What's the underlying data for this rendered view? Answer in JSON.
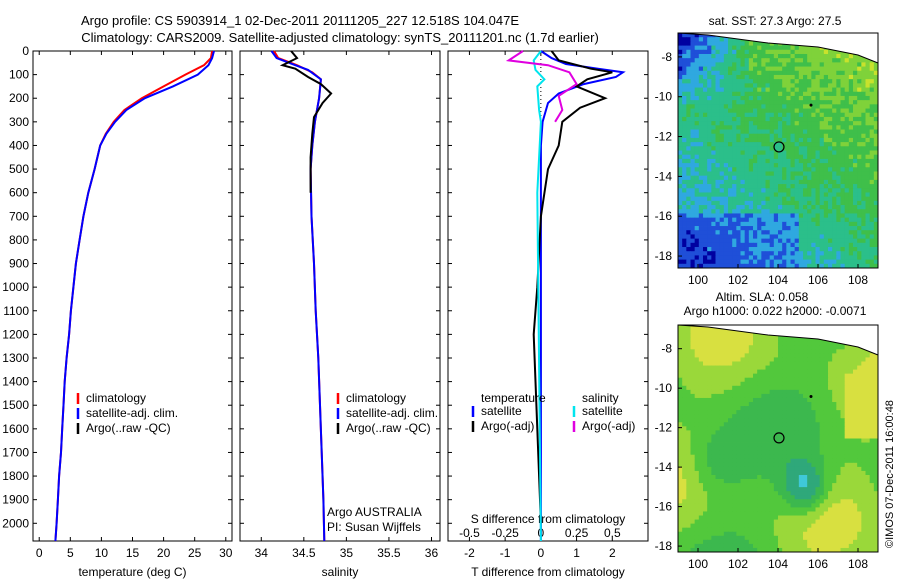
{
  "header": {
    "line1": "Argo profile: CS 5903914_1 02-Dec-2011 20111205_227 12.518S 104.047E",
    "line2": "Climatology: CARS2009. Satellite-adjusted climatology: synTS_20111201.nc (1.7d earlier)"
  },
  "watermark": "©IMOS 07-Dec-2011 16:00:48",
  "colors": {
    "climatology": "#ff0000",
    "satellite": "#0000ff",
    "argo": "#000000",
    "satellite_diff": "#00e5ee",
    "argo_diff": "#e000e0"
  },
  "chart_data": [
    {
      "type": "line",
      "id": "temperature",
      "xlabel": "temperature (deg C)",
      "ylabel": "",
      "xlim": [
        -1,
        31
      ],
      "ylim": [
        2075,
        0
      ],
      "xticks": [
        "0",
        "5",
        "10",
        "15",
        "20",
        "25",
        "30"
      ],
      "yticks": [
        "0",
        "100",
        "200",
        "300",
        "400",
        "500",
        "600",
        "700",
        "800",
        "900",
        "1000",
        "1100",
        "1200",
        "1300",
        "1400",
        "1500",
        "1600",
        "1700",
        "1800",
        "1900",
        "2000"
      ],
      "legend": [
        "climatology",
        "satellite-adj. clim.",
        "Argo(..raw -QC)"
      ],
      "series": [
        {
          "name": "climatology",
          "color": "#ff0000",
          "points": [
            [
              27.8,
              0
            ],
            [
              27.6,
              30
            ],
            [
              26.5,
              60
            ],
            [
              23.5,
              100
            ],
            [
              20,
              150
            ],
            [
              16.5,
              200
            ],
            [
              13.7,
              250
            ],
            [
              12,
              300
            ],
            [
              10.7,
              350
            ],
            [
              9.8,
              400
            ],
            [
              8.9,
              500
            ],
            [
              7.9,
              600
            ],
            [
              7.1,
              700
            ],
            [
              6.5,
              800
            ],
            [
              5.9,
              900
            ],
            [
              5.5,
              1000
            ],
            [
              5.1,
              1100
            ],
            [
              4.8,
              1200
            ],
            [
              4.4,
              1300
            ],
            [
              4.1,
              1400
            ],
            [
              3.9,
              1500
            ],
            [
              3.7,
              1600
            ],
            [
              3.5,
              1700
            ],
            [
              3.2,
              1800
            ],
            [
              3.0,
              1900
            ],
            [
              2.8,
              2000
            ],
            [
              2.6,
              2075
            ]
          ]
        },
        {
          "name": "satellite-adj. clim.",
          "color": "#0000ff",
          "points": [
            [
              28.1,
              0
            ],
            [
              27.8,
              30
            ],
            [
              27.2,
              60
            ],
            [
              25.5,
              100
            ],
            [
              21.5,
              150
            ],
            [
              17,
              200
            ],
            [
              14,
              250
            ],
            [
              12.2,
              300
            ],
            [
              10.8,
              350
            ],
            [
              9.8,
              400
            ],
            [
              8.9,
              500
            ],
            [
              7.9,
              600
            ],
            [
              7.1,
              700
            ],
            [
              6.5,
              800
            ],
            [
              5.9,
              900
            ],
            [
              5.5,
              1000
            ],
            [
              5.1,
              1100
            ],
            [
              4.8,
              1200
            ],
            [
              4.4,
              1300
            ],
            [
              4.1,
              1400
            ],
            [
              3.9,
              1500
            ],
            [
              3.7,
              1600
            ],
            [
              3.5,
              1700
            ],
            [
              3.2,
              1800
            ],
            [
              3.0,
              1900
            ],
            [
              2.8,
              2000
            ],
            [
              2.6,
              2075
            ]
          ]
        },
        {
          "name": "Argo(..raw -QC)",
          "color": "#000000",
          "points": []
        }
      ]
    },
    {
      "type": "line",
      "id": "salinity",
      "xlabel": "salinity",
      "xlim": [
        33.75,
        36.1
      ],
      "ylim": [
        2075,
        0
      ],
      "xticks": [
        "34",
        "34.5",
        "35",
        "35.5",
        "36"
      ],
      "legend": [
        "climatology",
        "satellite-adj. clim.",
        "Argo(..raw -QC)"
      ],
      "annotation": [
        "Argo AUSTRALIA",
        "PI: Susan Wijffels"
      ],
      "series": [
        {
          "name": "climatology",
          "color": "#ff0000",
          "points": [
            [
              34.15,
              0
            ],
            [
              34.2,
              30
            ],
            [
              34.42,
              60
            ],
            [
              34.6,
              90
            ],
            [
              34.7,
              120
            ],
            [
              34.68,
              200
            ],
            [
              34.63,
              300
            ],
            [
              34.6,
              400
            ],
            [
              34.58,
              500
            ],
            [
              34.59,
              700
            ],
            [
              34.62,
              900
            ],
            [
              34.64,
              1100
            ],
            [
              34.67,
              1300
            ],
            [
              34.69,
              1500
            ],
            [
              34.71,
              1700
            ],
            [
              34.73,
              1900
            ],
            [
              34.74,
              2075
            ]
          ]
        },
        {
          "name": "satellite-adj. clim.",
          "color": "#0000ff",
          "points": [
            [
              34.12,
              0
            ],
            [
              34.18,
              30
            ],
            [
              34.4,
              60
            ],
            [
              34.55,
              80
            ],
            [
              34.7,
              120
            ],
            [
              34.68,
              200
            ],
            [
              34.63,
              300
            ],
            [
              34.6,
              400
            ],
            [
              34.58,
              500
            ],
            [
              34.59,
              700
            ],
            [
              34.62,
              900
            ],
            [
              34.64,
              1100
            ],
            [
              34.67,
              1300
            ],
            [
              34.69,
              1500
            ],
            [
              34.71,
              1700
            ],
            [
              34.73,
              1900
            ],
            [
              34.74,
              2075
            ]
          ]
        },
        {
          "name": "Argo(..raw -QC)",
          "color": "#000000",
          "points": [
            [
              34.35,
              0
            ],
            [
              34.42,
              30
            ],
            [
              34.25,
              60
            ],
            [
              34.4,
              75
            ],
            [
              34.55,
              110
            ],
            [
              34.7,
              140
            ],
            [
              34.82,
              180
            ],
            [
              34.72,
              220
            ],
            [
              34.62,
              280
            ],
            [
              34.6,
              350
            ],
            [
              34.58,
              450
            ],
            [
              34.58,
              600
            ]
          ]
        }
      ]
    },
    {
      "type": "line",
      "id": "difference",
      "xlabel": "T difference from climatology",
      "xlabel_top": "S difference from climatology",
      "xlim": [
        -2.6,
        3.0
      ],
      "ylim": [
        2075,
        0
      ],
      "xticks": [
        "-2",
        "-1",
        "0",
        "1",
        "2"
      ],
      "top_ticks": [
        "-0.5",
        "-0.25",
        "0",
        "0.25",
        "0.5"
      ],
      "legend_temperature_title": "temperature",
      "legend_salinity_title": "salinity",
      "legend": [
        "satellite",
        "Argo(-adj)",
        "satellite",
        "Argo(-adj)"
      ],
      "series": [
        {
          "name": "temperature satellite",
          "color": "#0000ff",
          "points": [
            [
              0,
              0
            ],
            [
              0.3,
              30
            ],
            [
              0.7,
              55
            ],
            [
              1.6,
              75
            ],
            [
              2.3,
              90
            ],
            [
              2.1,
              110
            ],
            [
              1.2,
              140
            ],
            [
              0.5,
              180
            ],
            [
              0.2,
              220
            ],
            [
              0.05,
              300
            ],
            [
              0,
              400
            ],
            [
              0,
              2075
            ]
          ]
        },
        {
          "name": "temperature Argo(-adj)",
          "color": "#000000",
          "points": [
            [
              0.3,
              0
            ],
            [
              0.5,
              40
            ],
            [
              1.4,
              75
            ],
            [
              2.0,
              90
            ],
            [
              1.3,
              120
            ],
            [
              1.0,
              150
            ],
            [
              1.8,
              200
            ],
            [
              1.1,
              240
            ],
            [
              0.6,
              300
            ],
            [
              0.5,
              400
            ],
            [
              0.2,
              500
            ],
            [
              0,
              700
            ],
            [
              -0.1,
              1000
            ],
            [
              -0.2,
              1200
            ],
            [
              -0.1,
              1600
            ],
            [
              0,
              2000
            ]
          ]
        },
        {
          "name": "salinity satellite",
          "color": "#00e5ee",
          "points": [
            [
              0,
              0
            ],
            [
              -0.2,
              40
            ],
            [
              -0.15,
              80
            ],
            [
              0.1,
              120
            ],
            [
              -0.1,
              150
            ],
            [
              -0.05,
              250
            ],
            [
              0,
              300
            ],
            [
              -0.1,
              600
            ],
            [
              0,
              2075
            ]
          ]
        },
        {
          "name": "salinity Argo(-adj)",
          "color": "#e000e0",
          "points": [
            [
              -0.5,
              0
            ],
            [
              -0.9,
              40
            ],
            [
              0.2,
              60
            ],
            [
              0.8,
              90
            ],
            [
              1.0,
              140
            ],
            [
              0.5,
              190
            ],
            [
              0.6,
              250
            ],
            [
              0.4,
              300
            ]
          ]
        }
      ]
    },
    {
      "type": "heatmap",
      "id": "sst-map",
      "title": "sat. SST: 27.3 Argo: 27.5",
      "xlim": [
        99,
        109
      ],
      "ylim": [
        -18.6,
        -6.8
      ],
      "xticks": [
        "100",
        "102",
        "104",
        "106",
        "108"
      ],
      "yticks": [
        "-8",
        "-10",
        "-12",
        "-14",
        "-16",
        "-18"
      ],
      "marker": [
        104.05,
        -12.52
      ]
    },
    {
      "type": "heatmap",
      "id": "sla-map",
      "title": "Altim. SLA: 0.058",
      "subtitle": "Argo h1000: 0.022 h2000: -0.0071",
      "xlim": [
        99,
        109
      ],
      "ylim": [
        -18.3,
        -6.8
      ],
      "xticks": [
        "100",
        "102",
        "104",
        "106",
        "108"
      ],
      "yticks": [
        "-8",
        "-10",
        "-12",
        "-14",
        "-16",
        "-18"
      ],
      "marker": [
        104.05,
        -12.52
      ]
    }
  ]
}
